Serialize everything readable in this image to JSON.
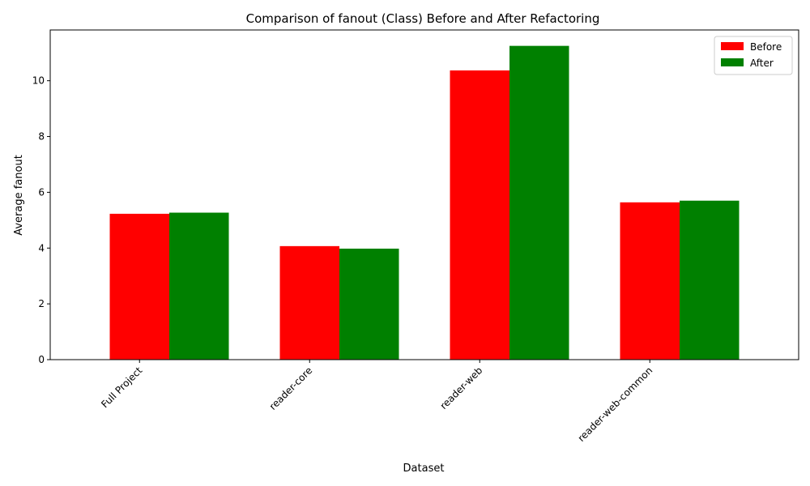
{
  "chart_data": {
    "type": "bar",
    "title": "Comparison of fanout (Class) Before and After Refactoring",
    "xlabel": "Dataset",
    "ylabel": "Average fanout",
    "categories": [
      "Full Project",
      "reader-core",
      "reader-web",
      "reader-web-common"
    ],
    "series": [
      {
        "name": "Before",
        "color": "#ff0000",
        "values": [
          5.23,
          4.07,
          10.37,
          5.64
        ]
      },
      {
        "name": "After",
        "color": "#008000",
        "values": [
          5.27,
          3.98,
          11.25,
          5.7
        ]
      }
    ],
    "ylim": [
      0,
      11.82
    ],
    "yticks": [
      0,
      2,
      4,
      6,
      8,
      10
    ],
    "grid": false,
    "legend_position": "top-right"
  }
}
